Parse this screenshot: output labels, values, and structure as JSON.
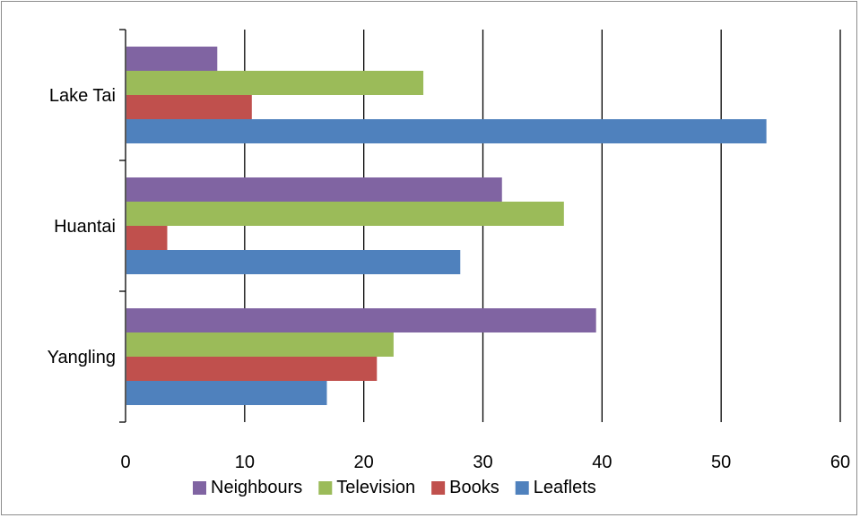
{
  "chart_data": {
    "type": "bar",
    "orientation": "horizontal",
    "categories": [
      "Lake Tai",
      "Huantai",
      "Yangling"
    ],
    "series": [
      {
        "name": "Neighbours",
        "color": "#8064a2",
        "values": [
          7.7,
          31.6,
          39.5
        ]
      },
      {
        "name": "Television",
        "color": "#9bbb59",
        "values": [
          25.0,
          36.8,
          22.5
        ]
      },
      {
        "name": "Books",
        "color": "#c0504d",
        "values": [
          10.6,
          3.5,
          21.1
        ]
      },
      {
        "name": "Leaflets",
        "color": "#4f81bd",
        "values": [
          53.8,
          28.1,
          16.9
        ]
      }
    ],
    "x_ticks": [
      "0",
      "10",
      "20",
      "30",
      "40",
      "50",
      "60"
    ],
    "xlim": [
      0,
      60
    ],
    "grid": "vertical major gridlines",
    "legend_position": "bottom",
    "title": "",
    "xlabel": "",
    "ylabel": ""
  }
}
